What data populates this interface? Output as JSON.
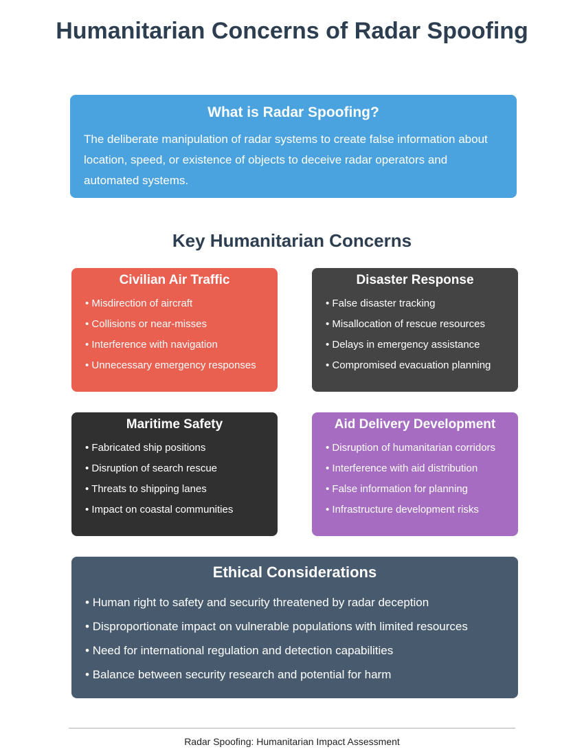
{
  "title": "Humanitarian Concerns of Radar Spoofing",
  "intro": {
    "heading": "What is Radar Spoofing?",
    "text": "The deliberate manipulation of radar systems to create false information about location, speed, or existence of objects to deceive radar operators and automated systems."
  },
  "section_title": "Key Humanitarian Concerns",
  "cards": [
    {
      "title": "Civilian Air Traffic",
      "color": "#e95f50",
      "items": [
        "Misdirection of aircraft",
        "Collisions or near-misses",
        "Interference with navigation",
        "Unnecessary emergency responses"
      ]
    },
    {
      "title": "Disaster Response",
      "color": "#444444",
      "items": [
        "False disaster tracking",
        "Misallocation of rescue resources",
        "Delays in emergency assistance",
        "Compromised evacuation planning"
      ]
    },
    {
      "title": "Maritime Safety",
      "color": "#303030",
      "items": [
        "Fabricated ship positions",
        "Disruption of search rescue",
        "Threats to shipping lanes",
        "Impact on coastal communities"
      ]
    },
    {
      "title": "Aid Delivery Development",
      "color": "#a56cc1",
      "items": [
        "Disruption of humanitarian corridors",
        "Interference with aid distribution",
        "False information for planning",
        "Infrastructure development risks"
      ]
    }
  ],
  "ethics": {
    "title": "Ethical Considerations",
    "items": [
      "Human right to safety and security threatened by radar deception",
      "Disproportionate impact on vulnerable populations with limited resources",
      "Need for international regulation and detection capabilities",
      "Balance between security research and potential for harm"
    ]
  },
  "footer": "Radar Spoofing: Humanitarian Impact Assessment"
}
